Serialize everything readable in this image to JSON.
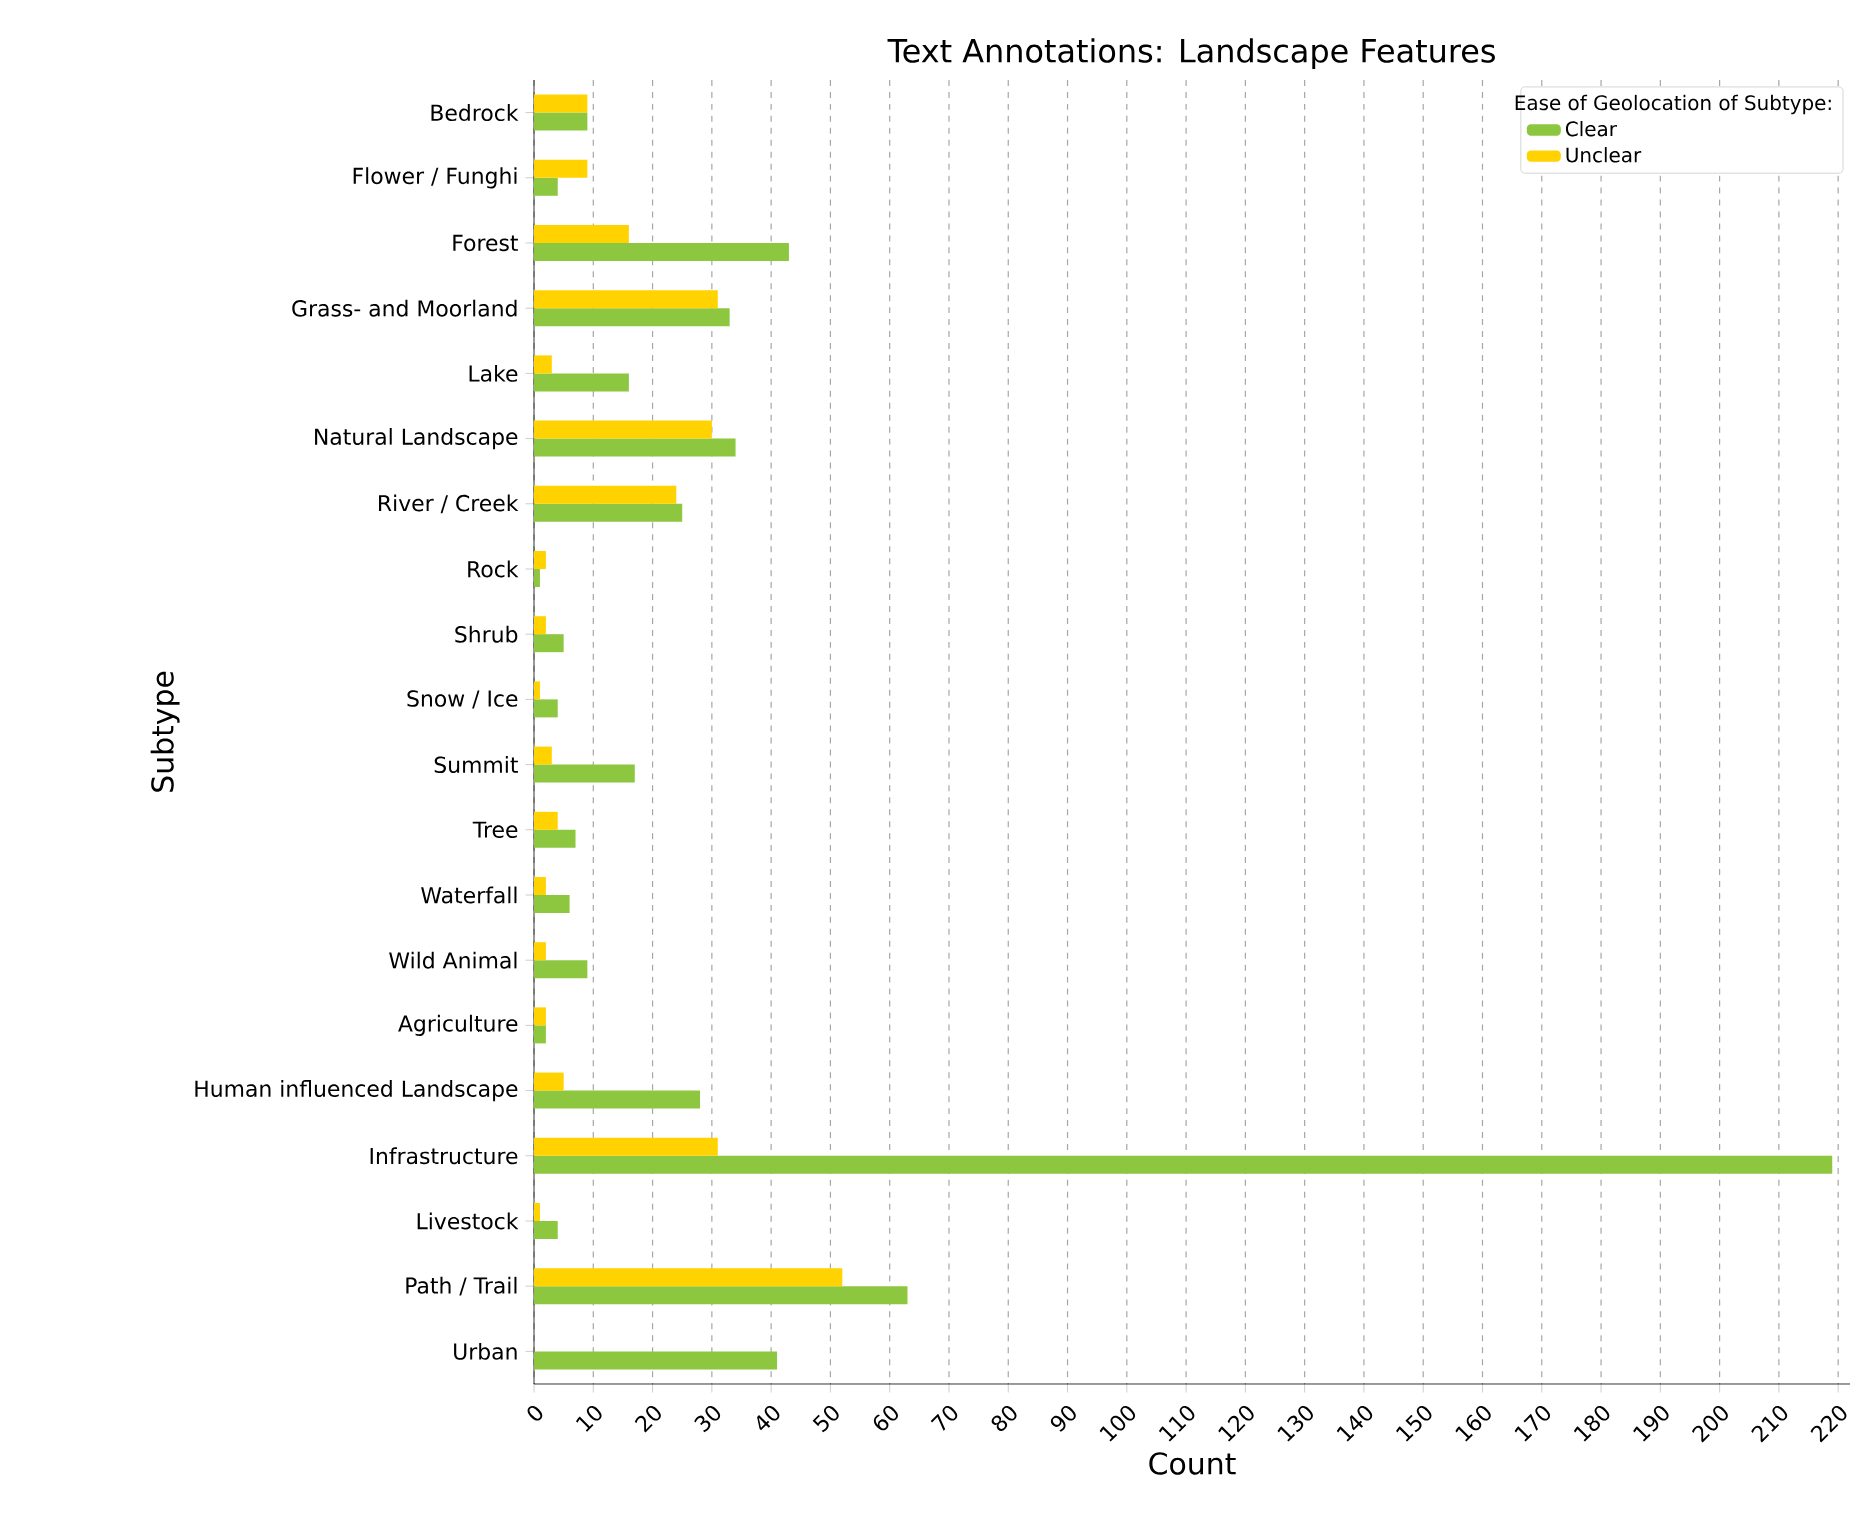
{
  "chart_data": {
    "type": "bar",
    "orientation": "horizontal",
    "title": "Text Annotations: Landscape Features",
    "xlabel": "Count",
    "ylabel": "Subtype",
    "legend_title": "Ease of Geolocation of Subtype:",
    "categories": [
      "Bedrock",
      "Flower / Funghi",
      "Forest",
      "Grass- and Moorland",
      "Lake",
      "Natural Landscape",
      "River / Creek",
      "Rock",
      "Shrub",
      "Snow / Ice",
      "Summit",
      "Tree",
      "Waterfall",
      "Wild Animal",
      "Agriculture",
      "Human influenced Landscape",
      "Infrastructure",
      "Livestock",
      "Path / Trail",
      "Urban"
    ],
    "series": [
      {
        "name": "Clear",
        "color": "#8dc63f",
        "values": [
          9,
          4,
          43,
          33,
          16,
          34,
          25,
          1,
          5,
          4,
          17,
          7,
          6,
          9,
          2,
          28,
          219,
          4,
          63,
          41
        ]
      },
      {
        "name": "Unclear",
        "color": "#ffd200",
        "values": [
          9,
          9,
          16,
          31,
          3,
          30,
          24,
          2,
          2,
          1,
          3,
          4,
          2,
          2,
          2,
          5,
          31,
          1,
          52,
          0
        ]
      }
    ],
    "xlim": [
      0,
      222
    ],
    "xticks": [
      0,
      10,
      20,
      30,
      40,
      50,
      60,
      70,
      80,
      90,
      100,
      110,
      120,
      130,
      140,
      150,
      160,
      170,
      180,
      190,
      200,
      210,
      220
    ],
    "grid": "x",
    "legend": "top right"
  }
}
